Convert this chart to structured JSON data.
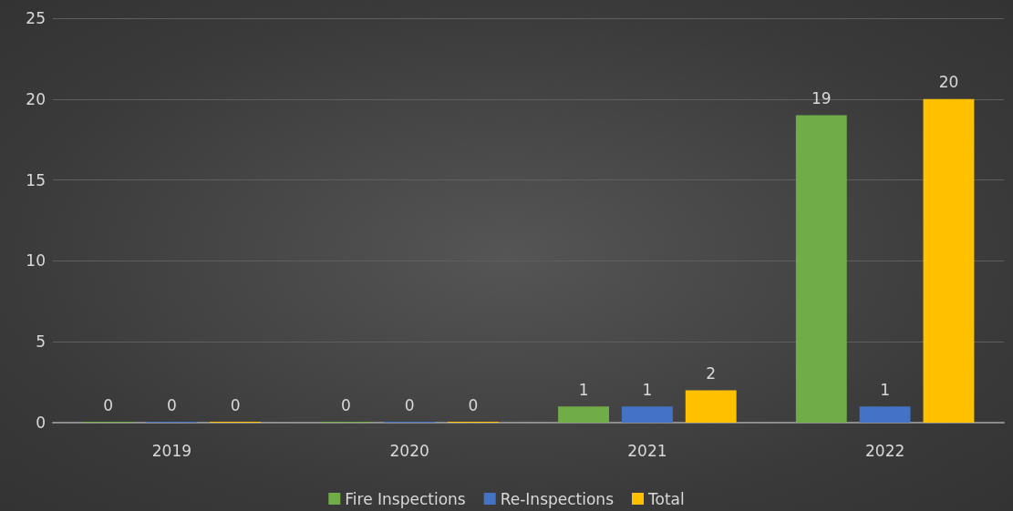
{
  "chart_data": {
    "type": "bar",
    "categories": [
      "2019",
      "2020",
      "2021",
      "2022"
    ],
    "series": [
      {
        "name": "Fire Inspections",
        "color": "#70ad47",
        "values": [
          0,
          0,
          1,
          19
        ]
      },
      {
        "name": "Re-Inspections",
        "color": "#4472c4",
        "values": [
          0,
          0,
          1,
          1
        ]
      },
      {
        "name": "Total",
        "color": "#ffc000",
        "values": [
          0,
          0,
          2,
          20
        ]
      }
    ],
    "ylim": [
      0,
      25
    ],
    "yticks": [
      0,
      5,
      10,
      15,
      20,
      25
    ],
    "grid": "y",
    "legend": "bottom",
    "data_labels": true
  }
}
